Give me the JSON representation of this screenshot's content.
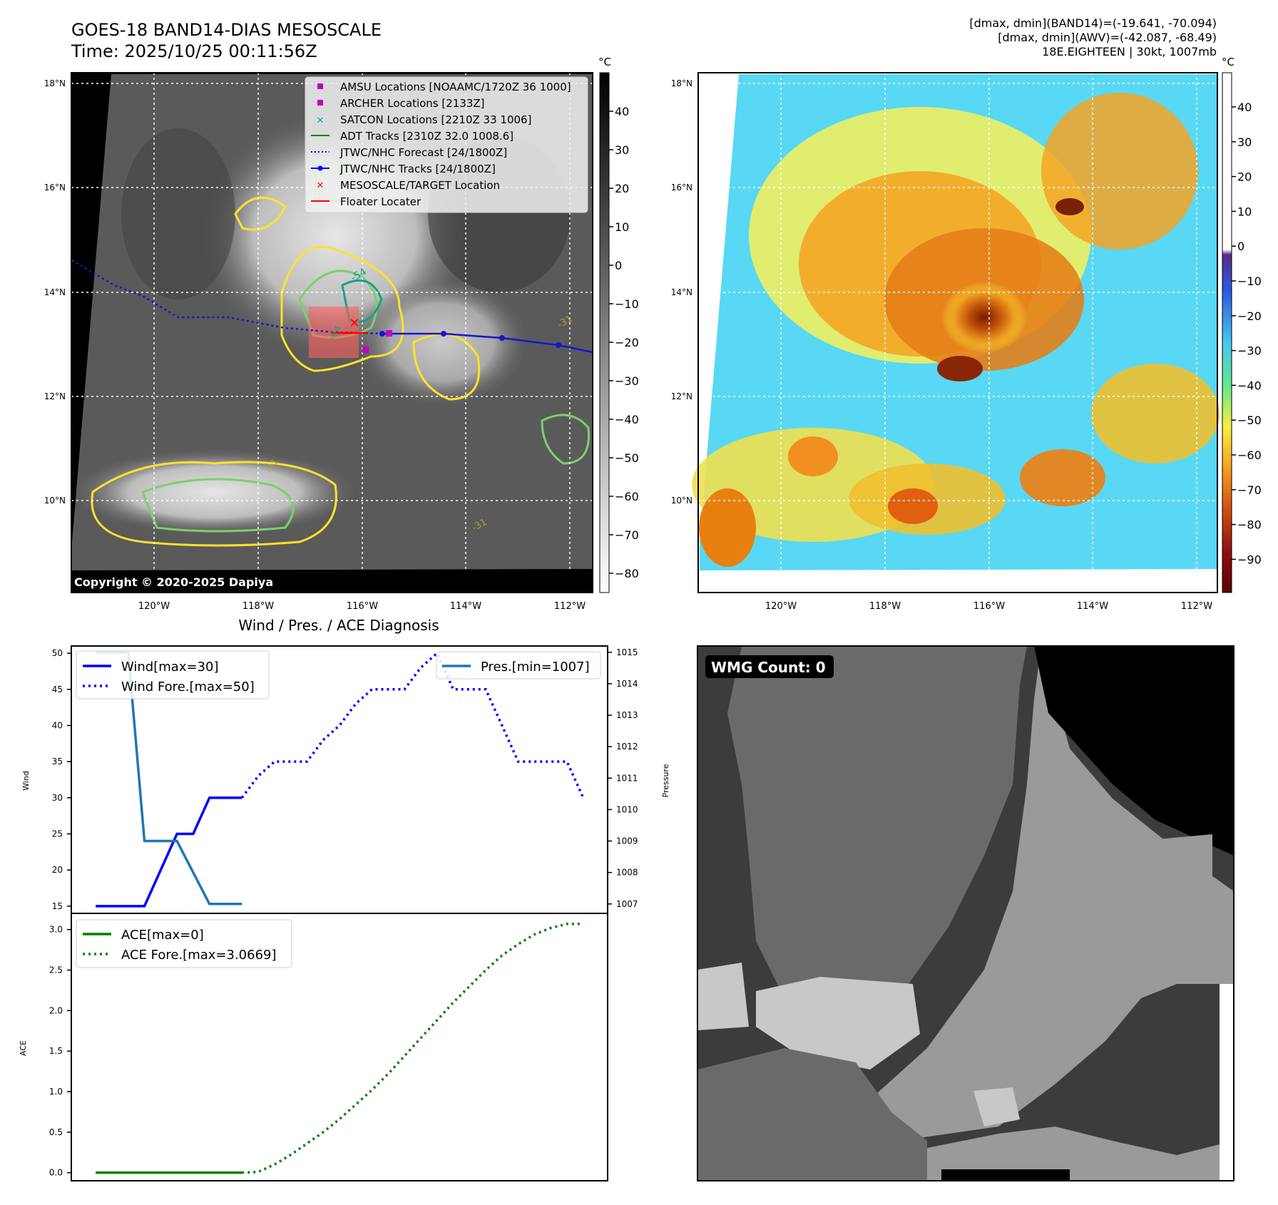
{
  "header": {
    "title": "GOES-18 BAND14-DIAS MESOSCALE",
    "time": "Time: 2025/10/25 00:11:56Z",
    "info_line1": "[dmax, dmin](BAND14)=(-19.641, -70.094)",
    "info_line2": "[dmax, dmin](AWV)=(-42.087, -68.49)",
    "info_line3": "18E.EIGHTEEN | 30kt, 1007mb"
  },
  "map": {
    "lat_labels": [
      "18°N",
      "16°N",
      "14°N",
      "12°N",
      "10°N"
    ],
    "lon_labels": [
      "120°W",
      "118°W",
      "116°W",
      "114°W",
      "112°W"
    ],
    "copyright": "Copyright © 2020-2025 Dapiya",
    "contour_labels": [
      "-54",
      "-64",
      "-31",
      "-31",
      "-31"
    ]
  },
  "legend": [
    {
      "label": "AMSU Locations [NOAAMC/1720Z 36 1000]",
      "marker": "square",
      "color": "#c000c0"
    },
    {
      "label": "ARCHER Locations [2133Z]",
      "marker": "square",
      "color": "#c000c0"
    },
    {
      "label": "SATCON Locations [2210Z 33 1006]",
      "marker": "x",
      "color": "#00b0b0"
    },
    {
      "label": "ADT Tracks [2310Z 32.0 1008.6]",
      "marker": "line",
      "color": "#008000"
    },
    {
      "label": "JTWC/NHC Forecast [24/1800Z]",
      "marker": "dotted",
      "color": "#0000ff"
    },
    {
      "label": "JTWC/NHC Tracks [24/1800Z]",
      "marker": "line-dot",
      "color": "#0000ff"
    },
    {
      "label": "MESOSCALE/TARGET Location",
      "marker": "x",
      "color": "#ff0000"
    },
    {
      "label": "Floater Locater",
      "marker": "line",
      "color": "#ff0000"
    }
  ],
  "colorbar_gray": {
    "unit": "°C",
    "ticks": [
      "40",
      "30",
      "20",
      "10",
      "0",
      "−10",
      "−20",
      "−30",
      "−40",
      "−50",
      "−60",
      "−70",
      "−80"
    ]
  },
  "colorbar_color": {
    "unit": "°C",
    "ticks": [
      "40",
      "30",
      "20",
      "10",
      "0",
      "−10",
      "−20",
      "−30",
      "−40",
      "−50",
      "−60",
      "−70",
      "−80",
      "−90"
    ]
  },
  "wmg": {
    "label": "WMG Count: 0"
  },
  "chart_data": [
    {
      "type": "line",
      "title": "Wind / Pres. / ACE Diagnosis",
      "ylabel": "Wind",
      "ylim": [
        14,
        51
      ],
      "y2label": "Pressure",
      "y2lim": [
        1006.7,
        1015.2
      ],
      "x": [
        0,
        1,
        2,
        3,
        4,
        5,
        6,
        7,
        8,
        9,
        10,
        11,
        12,
        13,
        14,
        15,
        16,
        17,
        18,
        19,
        20,
        21,
        22,
        23,
        24,
        25,
        26,
        27,
        28,
        29,
        30
      ],
      "series": [
        {
          "name": "Wind[max=30]",
          "style": "solid",
          "color": "#0000ff",
          "x": [
            0,
            3,
            5,
            6,
            7,
            8,
            9
          ],
          "values": [
            15,
            15,
            25,
            25,
            30,
            30,
            30
          ]
        },
        {
          "name": "Wind Fore.[max=50]",
          "style": "dotted",
          "color": "#0000ff",
          "x": [
            9,
            10,
            11,
            12,
            13,
            14,
            15,
            16,
            17,
            18,
            19,
            20,
            21,
            22,
            23,
            24,
            25,
            26,
            27,
            28,
            29,
            30
          ],
          "values": [
            30,
            33,
            35,
            35,
            35,
            38,
            40,
            43,
            45,
            45,
            45,
            48,
            50,
            45,
            45,
            45,
            40,
            35,
            35,
            35,
            35,
            30
          ]
        },
        {
          "name": "Pres.[min=1007]",
          "style": "solid",
          "color": "#1f77b4",
          "axis": "right",
          "x": [
            0,
            2,
            3,
            4,
            5,
            6,
            7,
            8,
            9
          ],
          "values": [
            1015,
            1015,
            1009,
            1009,
            1009,
            1008,
            1007,
            1007,
            1007
          ]
        }
      ],
      "yticks": [
        "50",
        "45",
        "40",
        "35",
        "30",
        "25",
        "20",
        "15"
      ],
      "y2ticks": [
        "1015",
        "1014",
        "1013",
        "1012",
        "1011",
        "1010",
        "1009",
        "1008",
        "1007"
      ]
    },
    {
      "type": "line",
      "ylabel": "ACE",
      "ylim": [
        -0.1,
        3.2
      ],
      "series": [
        {
          "name": "ACE[max=0]",
          "style": "solid",
          "color": "#008000",
          "x": [
            0,
            9
          ],
          "values": [
            0,
            0
          ]
        },
        {
          "name": "ACE Fore.[max=3.0669]",
          "style": "dotted",
          "color": "#008000",
          "x": [
            9,
            10,
            11,
            12,
            13,
            14,
            15,
            16,
            17,
            18,
            19,
            20,
            21,
            22,
            23,
            24,
            25,
            26,
            27,
            28,
            29,
            30
          ],
          "values": [
            0,
            0.01,
            0.1,
            0.22,
            0.36,
            0.5,
            0.66,
            0.84,
            1.02,
            1.22,
            1.44,
            1.66,
            1.88,
            2.1,
            2.3,
            2.5,
            2.68,
            2.82,
            2.94,
            3.02,
            3.07,
            3.07
          ]
        }
      ],
      "yticks": [
        "3.0",
        "2.5",
        "2.0",
        "1.5",
        "1.0",
        "0.5",
        "0.0"
      ]
    }
  ]
}
